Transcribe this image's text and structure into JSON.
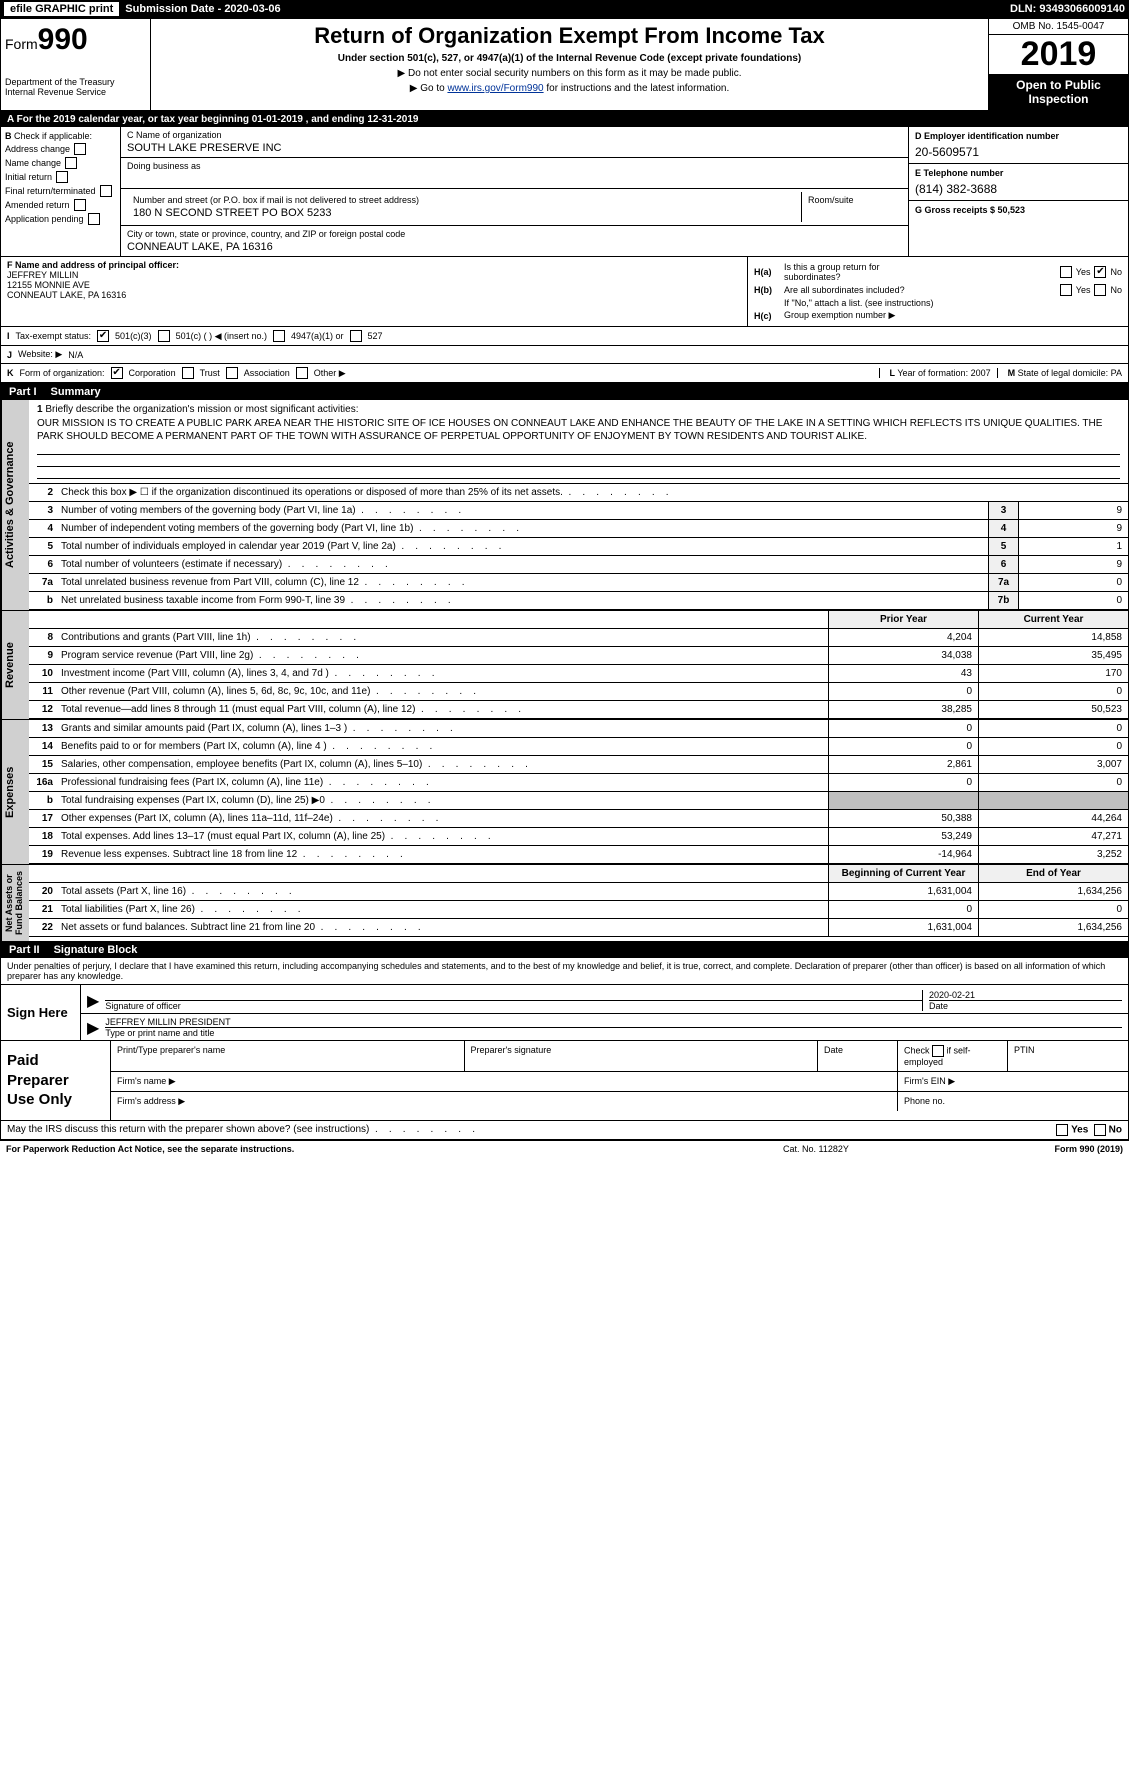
{
  "topbar": {
    "efile": "efile GRAPHIC print",
    "submission_label": "Submission Date - 2020-03-06",
    "dln": "DLN: 93493066009140"
  },
  "header": {
    "form_prefix": "Form",
    "form_num": "990",
    "dept": "Department of the Treasury\nInternal Revenue Service",
    "title": "Return of Organization Exempt From Income Tax",
    "subtitle": "Under section 501(c), 527, or 4947(a)(1) of the Internal Revenue Code (except private foundations)",
    "note1": "▶ Do not enter social security numbers on this form as it may be made public.",
    "note2_pre": "▶ Go to ",
    "note2_link": "www.irs.gov/Form990",
    "note2_post": " for instructions and the latest information.",
    "omb": "OMB No. 1545-0047",
    "year": "2019",
    "open": "Open to Public\nInspection"
  },
  "row_a": "A   For the 2019 calendar year, or tax year beginning 01-01-2019        , and ending 12-31-2019",
  "col_b": {
    "label": "B",
    "intro": "Check if applicable:",
    "items": [
      "Address change",
      "Name change",
      "Initial return",
      "Final return/terminated",
      "Amended return",
      "Application pending"
    ]
  },
  "col_c": {
    "c_label": "C Name of organization",
    "org_name": "SOUTH LAKE PRESERVE INC",
    "dba_label": "Doing business as",
    "addr_label": "Number and street (or P.O. box if mail is not delivered to street address)",
    "addr": "180 N SECOND STREET PO BOX 5233",
    "room_label": "Room/suite",
    "city_label": "City or town, state or province, country, and ZIP or foreign postal code",
    "city": "CONNEAUT LAKE, PA  16316"
  },
  "col_d": {
    "d_label": "D Employer identification number",
    "ein": "20-5609571",
    "e_label": "E Telephone number",
    "phone": "(814) 382-3688",
    "g_label": "G Gross receipts $ 50,523"
  },
  "f_block": {
    "f_label": "F  Name and address of principal officer:",
    "name": "JEFFREY MILLIN",
    "addr1": "12155 MONNIE AVE",
    "addr2": "CONNEAUT LAKE, PA   16316"
  },
  "h_block": {
    "ha_label": "H(a)",
    "ha_text": "Is this a group return for\nsubordinates?",
    "hb_label": "H(b)",
    "hb_text": "Are all subordinates included?",
    "hb_note": "If \"No,\" attach a list. (see instructions)",
    "hc_label": "H(c)",
    "hc_text": "Group exemption number ▶",
    "yes": "Yes",
    "no": "No"
  },
  "tax_status": {
    "i_label": "I",
    "text": "Tax-exempt status:",
    "opts": [
      "501(c)(3)",
      "501(c) (   ) ◀ (insert no.)",
      "4947(a)(1) or",
      "527"
    ]
  },
  "j_line": {
    "label": "J",
    "text": "Website: ▶",
    "val": "N/A"
  },
  "k_line": {
    "label": "K",
    "text": "Form of organization:",
    "opts": [
      "Corporation",
      "Trust",
      "Association",
      "Other ▶"
    ]
  },
  "l_line": {
    "label": "L",
    "text": "Year of formation: 2007"
  },
  "m_line": {
    "label": "M",
    "text": "State of legal domicile: PA"
  },
  "part1": {
    "num": "Part I",
    "title": "Summary"
  },
  "mission": {
    "line1_label": "1",
    "line1_text": "Briefly describe the organization's mission or most significant activities:",
    "body": "OUR MISSION IS TO CREATE A PUBLIC PARK AREA NEAR THE HISTORIC SITE OF ICE HOUSES ON CONNEAUT LAKE AND ENHANCE THE BEAUTY OF THE LAKE IN A SETTING WHICH REFLECTS ITS UNIQUE QUALITIES. THE PARK SHOULD BECOME A PERMANENT PART OF THE TOWN WITH ASSURANCE OF PERPETUAL OPPORTUNITY OF ENJOYMENT BY TOWN RESIDENTS AND TOURIST ALIKE."
  },
  "gov_rows": [
    {
      "n": "2",
      "desc": "Check this box ▶ ☐  if the organization discontinued its operations or disposed of more than 25% of its net assets.",
      "box": "",
      "val": ""
    },
    {
      "n": "3",
      "desc": "Number of voting members of the governing body (Part VI, line 1a)",
      "box": "3",
      "val": "9"
    },
    {
      "n": "4",
      "desc": "Number of independent voting members of the governing body (Part VI, line 1b)",
      "box": "4",
      "val": "9"
    },
    {
      "n": "5",
      "desc": "Total number of individuals employed in calendar year 2019 (Part V, line 2a)",
      "box": "5",
      "val": "1"
    },
    {
      "n": "6",
      "desc": "Total number of volunteers (estimate if necessary)",
      "box": "6",
      "val": "9"
    },
    {
      "n": "7a",
      "desc": "Total unrelated business revenue from Part VIII, column (C), line 12",
      "box": "7a",
      "val": "0"
    },
    {
      "n": "b",
      "desc": "Net unrelated business taxable income from Form 990-T, line 39",
      "box": "7b",
      "val": "0"
    }
  ],
  "two_col_header": {
    "c1": "Prior Year",
    "c2": "Current Year"
  },
  "revenue_rows": [
    {
      "n": "8",
      "desc": "Contributions and grants (Part VIII, line 1h)",
      "c1": "4,204",
      "c2": "14,858"
    },
    {
      "n": "9",
      "desc": "Program service revenue (Part VIII, line 2g)",
      "c1": "34,038",
      "c2": "35,495"
    },
    {
      "n": "10",
      "desc": "Investment income (Part VIII, column (A), lines 3, 4, and 7d )",
      "c1": "43",
      "c2": "170"
    },
    {
      "n": "11",
      "desc": "Other revenue (Part VIII, column (A), lines 5, 6d, 8c, 9c, 10c, and 11e)",
      "c1": "0",
      "c2": "0"
    },
    {
      "n": "12",
      "desc": "Total revenue—add lines 8 through 11 (must equal Part VIII, column (A), line 12)",
      "c1": "38,285",
      "c2": "50,523"
    }
  ],
  "expense_rows": [
    {
      "n": "13",
      "desc": "Grants and similar amounts paid (Part IX, column (A), lines 1–3 )",
      "c1": "0",
      "c2": "0"
    },
    {
      "n": "14",
      "desc": "Benefits paid to or for members (Part IX, column (A), line 4 )",
      "c1": "0",
      "c2": "0"
    },
    {
      "n": "15",
      "desc": "Salaries, other compensation, employee benefits (Part IX, column (A), lines 5–10)",
      "c1": "2,861",
      "c2": "3,007"
    },
    {
      "n": "16a",
      "desc": "Professional fundraising fees (Part IX, column (A), line 11e)",
      "c1": "0",
      "c2": "0"
    },
    {
      "n": "b",
      "desc": "Total fundraising expenses (Part IX, column (D), line 25) ▶0",
      "c1": "",
      "c2": "",
      "shade": true
    },
    {
      "n": "17",
      "desc": "Other expenses (Part IX, column (A), lines 11a–11d, 11f–24e)",
      "c1": "50,388",
      "c2": "44,264"
    },
    {
      "n": "18",
      "desc": "Total expenses. Add lines 13–17 (must equal Part IX, column (A), line 25)",
      "c1": "53,249",
      "c2": "47,271"
    },
    {
      "n": "19",
      "desc": "Revenue less expenses. Subtract line 18 from line 12",
      "c1": "-14,964",
      "c2": "3,252"
    }
  ],
  "net_header": {
    "c1": "Beginning of Current Year",
    "c2": "End of Year"
  },
  "net_rows": [
    {
      "n": "20",
      "desc": "Total assets (Part X, line 16)",
      "c1": "1,631,004",
      "c2": "1,634,256"
    },
    {
      "n": "21",
      "desc": "Total liabilities (Part X, line 26)",
      "c1": "0",
      "c2": "0"
    },
    {
      "n": "22",
      "desc": "Net assets or fund balances. Subtract line 21 from line 20",
      "c1": "1,631,004",
      "c2": "1,634,256"
    }
  ],
  "vtabs": {
    "gov": "Activities & Governance",
    "rev": "Revenue",
    "exp": "Expenses",
    "net": "Net Assets or\nFund Balances"
  },
  "part2": {
    "num": "Part II",
    "title": "Signature Block"
  },
  "sig_intro": "Under penalties of perjury, I declare that I have examined this return, including accompanying schedules and statements, and to the best of my knowledge and belief, it is true, correct, and complete. Declaration of preparer (other than officer) is based on all information of which preparer has any knowledge.",
  "sign": {
    "label": "Sign Here",
    "sig_of": "Signature of officer",
    "date_label": "Date",
    "date": "2020-02-21",
    "name": "JEFFREY MILLIN  PRESIDENT",
    "name_hint": "Type or print name and title"
  },
  "paid": {
    "label": "Paid\nPreparer\nUse Only",
    "h1": "Print/Type preparer's name",
    "h2": "Preparer's signature",
    "h3": "Date",
    "h4_pre": "Check",
    "h4_post": "if self-employed",
    "h5": "PTIN",
    "firm_name": "Firm's name   ▶",
    "firm_ein": "Firm's EIN ▶",
    "firm_addr": "Firm's address ▶",
    "phone": "Phone no."
  },
  "discuss": {
    "text": "May the IRS discuss this return with the preparer shown above? (see instructions)",
    "yes": "Yes",
    "no": "No"
  },
  "footer": {
    "left": "For Paperwork Reduction Act Notice, see the separate instructions.",
    "mid": "Cat. No. 11282Y",
    "right": "Form 990 (2019)"
  }
}
